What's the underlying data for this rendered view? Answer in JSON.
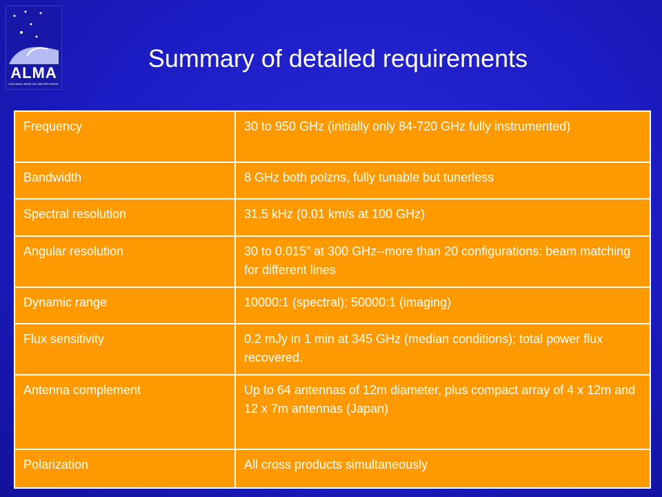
{
  "logo": {
    "name": "ALMA",
    "subtitle": "ATACAMA LARGE MILLIMETER ARRAY"
  },
  "title": "Summary of detailed requirements",
  "table": {
    "rows": [
      [
        "Frequency",
        "30 to 950 GHz (initially only 84-720 GHz fully instrumented)"
      ],
      [
        "Bandwidth",
        "8 GHz both polzns, fully tunable but tunerless"
      ],
      [
        "Spectral resolution",
        "31.5 kHz (0.01 km/s at 100 GHz)"
      ],
      [
        "Angular resolution",
        "30 to 0.015” at 300 GHz--more than 20 configurations:  beam matching for different lines"
      ],
      [
        "Dynamic range",
        "10000:1 (spectral); 50000:1 (imaging)"
      ],
      [
        "Flux sensitivity",
        "0.2 mJy in 1 min at 345 GHz (median conditions); total power flux recovered."
      ],
      [
        "Antenna complement",
        "Up to 64 antennas of 12m diameter, plus compact array of 4 x 12m and 12 x 7m antennas (Japan)"
      ],
      [
        "Polarization",
        "All cross products simultaneously"
      ]
    ]
  }
}
